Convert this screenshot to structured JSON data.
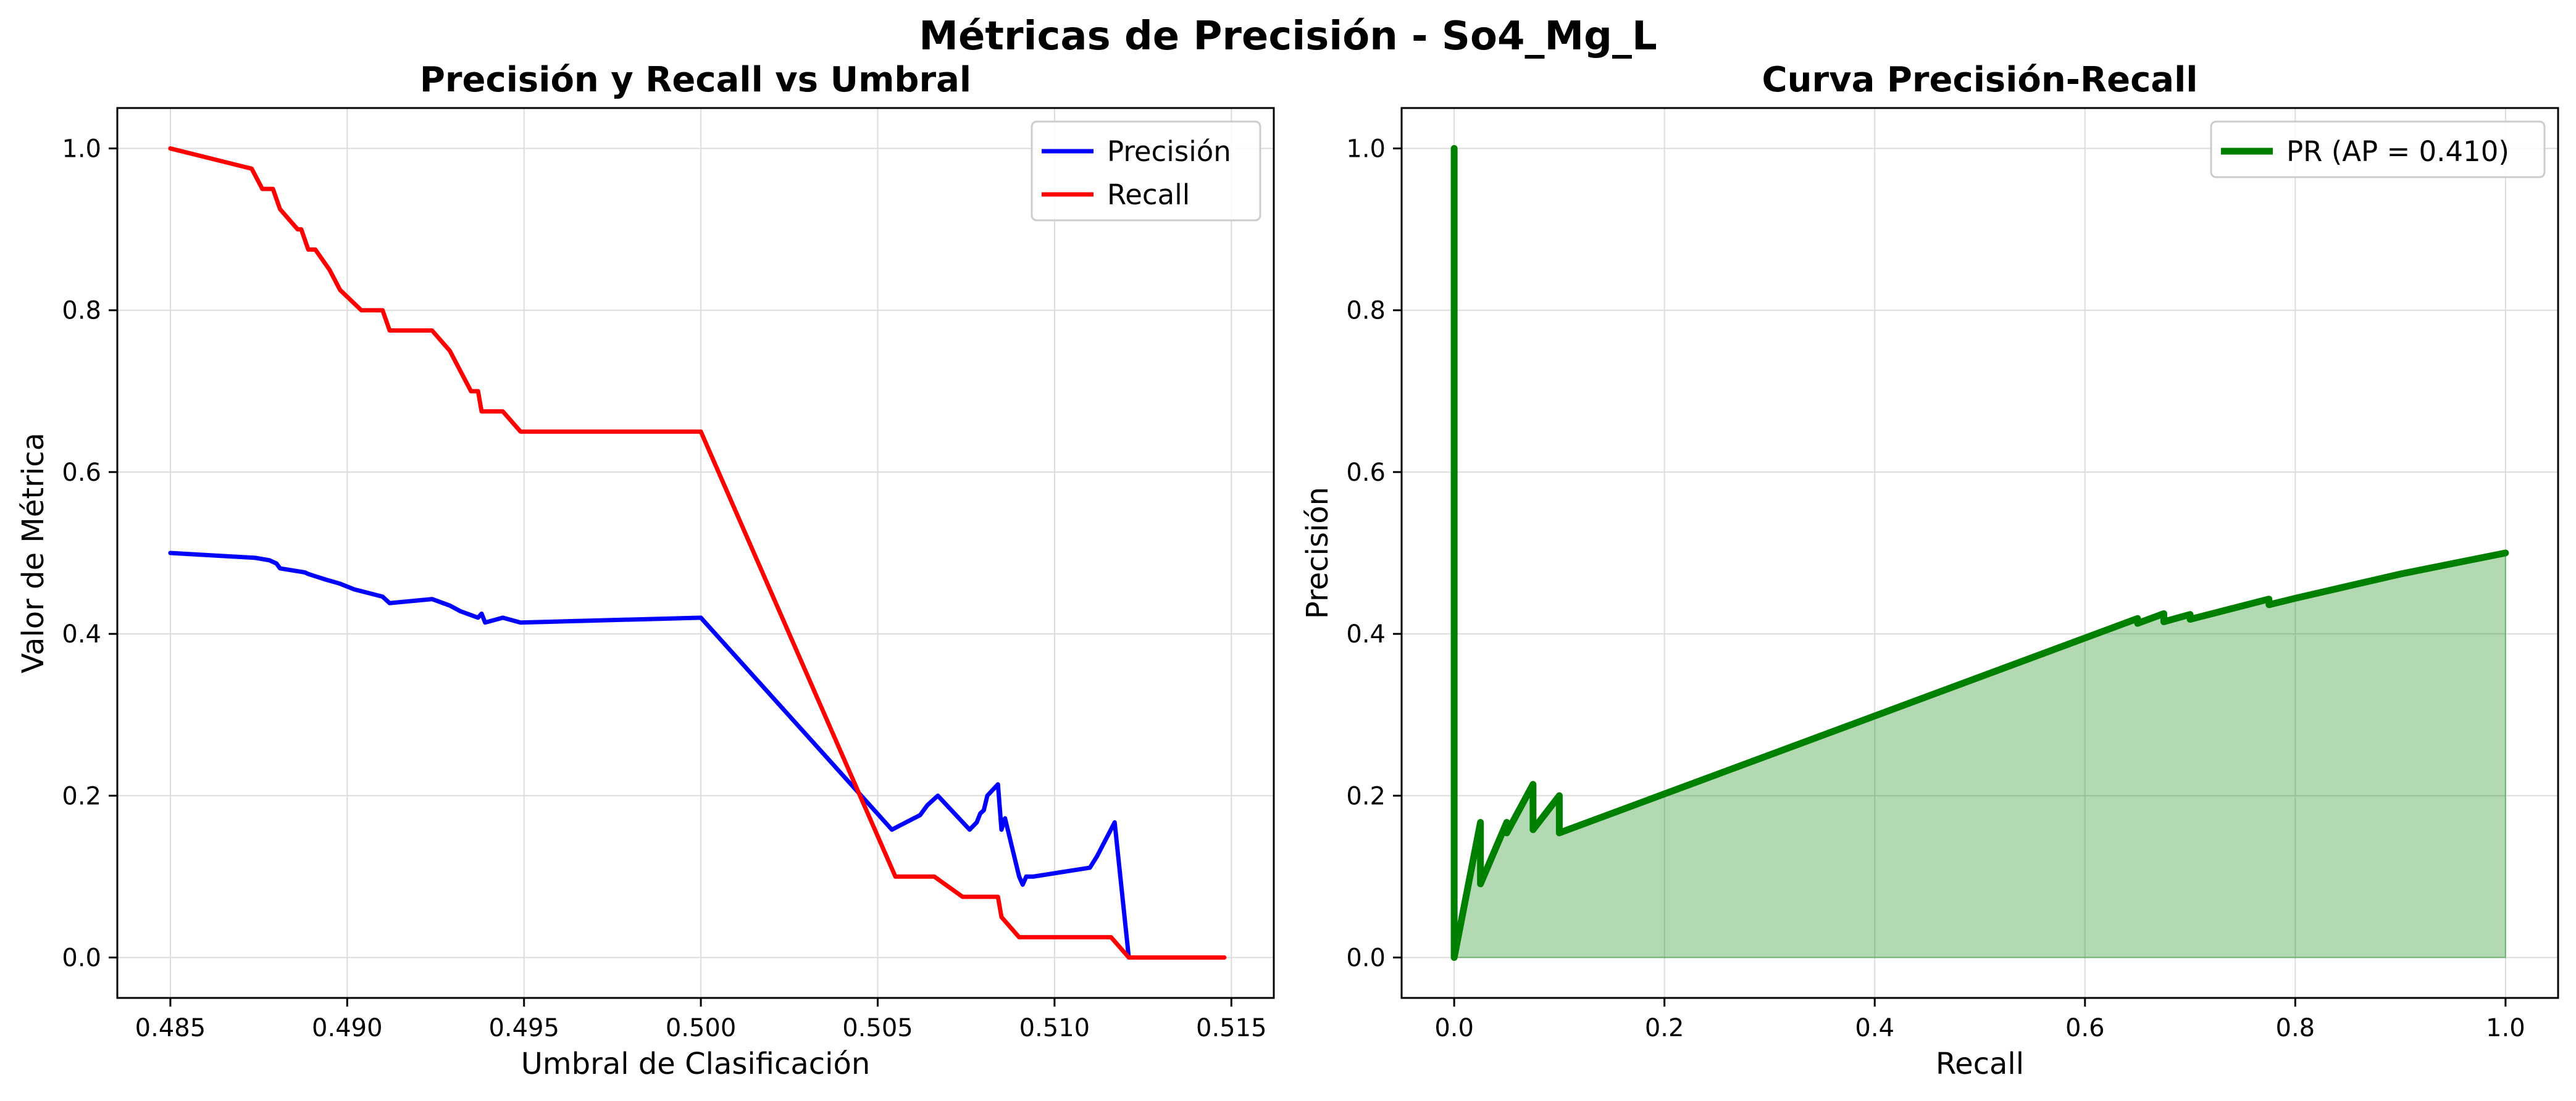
{
  "figure_title": "Métricas de Precisión - So4_Mg_L",
  "chart_data": [
    {
      "type": "line",
      "title": "Precisión y Recall vs Umbral",
      "xlabel": "Umbral de Clasificación",
      "ylabel": "Valor de Métrica",
      "xlim": [
        0.4835,
        0.5162
      ],
      "ylim": [
        -0.05,
        1.05
      ],
      "xticks": [
        "0.485",
        "0.490",
        "0.495",
        "0.500",
        "0.505",
        "0.510",
        "0.515"
      ],
      "yticks": [
        "0.0",
        "0.2",
        "0.4",
        "0.6",
        "0.8",
        "1.0"
      ],
      "grid": true,
      "legend_position": "top-right",
      "series": [
        {
          "name": "Precisión",
          "color": "#0000ff",
          "x": [
            0.485,
            0.4874,
            0.4878,
            0.488,
            0.4881,
            0.4888,
            0.4889,
            0.4894,
            0.4898,
            0.4902,
            0.491,
            0.4912,
            0.4924,
            0.4929,
            0.4932,
            0.4937,
            0.4938,
            0.4939,
            0.4944,
            0.4949,
            0.5,
            0.5054,
            0.5058,
            0.5062,
            0.5064,
            0.5067,
            0.5076,
            0.5078,
            0.5079,
            0.508,
            0.5081,
            0.5084,
            0.5085,
            0.5086,
            0.509,
            0.5091,
            0.5092,
            0.5094,
            0.511,
            0.5112,
            0.5117,
            0.5121,
            0.5148
          ],
          "y": [
            0.5,
            0.494,
            0.491,
            0.487,
            0.481,
            0.476,
            0.474,
            0.467,
            0.462,
            0.455,
            0.446,
            0.438,
            0.443,
            0.435,
            0.428,
            0.42,
            0.425,
            0.414,
            0.42,
            0.414,
            0.42,
            0.158,
            0.167,
            0.176,
            0.188,
            0.2,
            0.158,
            0.167,
            0.178,
            0.182,
            0.2,
            0.214,
            0.158,
            0.172,
            0.1,
            0.09,
            0.1,
            0.1,
            0.111,
            0.125,
            0.167,
            0.0,
            0.0
          ]
        },
        {
          "name": "Recall",
          "color": "#ff0000",
          "x": [
            0.485,
            0.4873,
            0.4876,
            0.4879,
            0.4881,
            0.4886,
            0.4887,
            0.4889,
            0.4891,
            0.4895,
            0.4898,
            0.4904,
            0.491,
            0.4912,
            0.4924,
            0.4929,
            0.4935,
            0.4937,
            0.4938,
            0.4944,
            0.4949,
            0.5,
            0.5055,
            0.5066,
            0.5074,
            0.5084,
            0.5085,
            0.509,
            0.5116,
            0.5121,
            0.5148
          ],
          "y": [
            1.0,
            0.975,
            0.95,
            0.95,
            0.925,
            0.9,
            0.9,
            0.875,
            0.875,
            0.85,
            0.825,
            0.8,
            0.8,
            0.775,
            0.775,
            0.75,
            0.7,
            0.7,
            0.675,
            0.675,
            0.65,
            0.65,
            0.1,
            0.1,
            0.075,
            0.075,
            0.05,
            0.025,
            0.025,
            0.0,
            0.0
          ]
        }
      ]
    },
    {
      "type": "area",
      "title": "Curva Precisión-Recall",
      "xlabel": "Recall",
      "ylabel": "Precisión",
      "xlim": [
        -0.05,
        1.05
      ],
      "ylim": [
        -0.05,
        1.05
      ],
      "xticks": [
        "0.0",
        "0.2",
        "0.4",
        "0.6",
        "0.8",
        "1.0"
      ],
      "yticks": [
        "0.0",
        "0.2",
        "0.4",
        "0.6",
        "0.8",
        "1.0"
      ],
      "grid": true,
      "legend_position": "top-right",
      "fill_color": "#008000",
      "series": [
        {
          "name": "PR (AP = 0.410)",
          "color": "#008000",
          "x": [
            0.0,
            0.0,
            0.025,
            0.025,
            0.05,
            0.05,
            0.075,
            0.075,
            0.1,
            0.1,
            0.65,
            0.65,
            0.675,
            0.675,
            0.7,
            0.7,
            0.775,
            0.775,
            0.8,
            0.85,
            0.9,
            0.95,
            1.0
          ],
          "y": [
            1.0,
            0.0,
            0.167,
            0.091,
            0.167,
            0.154,
            0.214,
            0.158,
            0.2,
            0.154,
            0.419,
            0.413,
            0.425,
            0.415,
            0.424,
            0.418,
            0.443,
            0.436,
            0.444,
            0.459,
            0.474,
            0.487,
            0.5
          ]
        }
      ]
    }
  ]
}
